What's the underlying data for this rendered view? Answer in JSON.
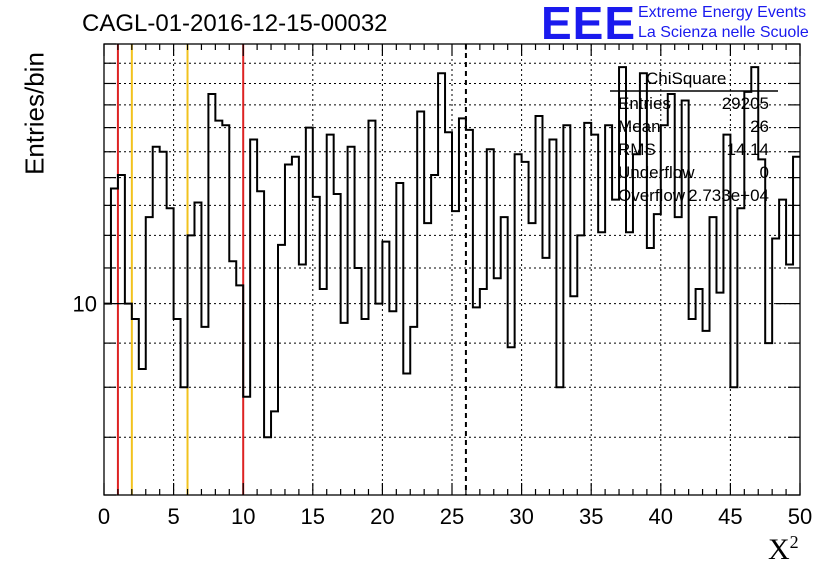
{
  "chart_data": {
    "type": "histogram",
    "title": "CAGL-01-2016-12-15-00032",
    "xlabel": "X",
    "xlabel_superscript": "2",
    "ylabel": "Entries/bin",
    "xlim": [
      0,
      50
    ],
    "ylim": [
      6,
      20
    ],
    "y_scale": "log",
    "x_ticks": [
      "0",
      "5",
      "10",
      "15",
      "20",
      "25",
      "30",
      "35",
      "40",
      "45",
      "50"
    ],
    "y_ticks": [
      "10"
    ],
    "bin_width": 0.5,
    "bin_values": [
      10,
      13.6,
      14.1,
      10,
      9.6,
      8.4,
      12.6,
      15.2,
      15,
      12.9,
      9.6,
      8,
      12,
      13.1,
      9.4,
      17.5,
      16.3,
      16.1,
      11.2,
      10.5,
      7.8,
      15.5,
      13.5,
      7,
      7.5,
      11.7,
      14.5,
      14.8,
      11.1,
      16,
      13.3,
      10.4,
      15.7,
      13.4,
      9.5,
      15.2,
      11,
      9.6,
      16.3,
      10,
      11.8,
      9.8,
      13.8,
      8.3,
      9.4,
      16.7,
      12.4,
      14.1,
      18.5,
      15.8,
      12.8,
      16.4,
      15.9,
      9.9,
      10.4,
      15.1,
      10.7,
      12.6,
      8.9,
      14.9,
      14.6,
      12.4,
      16.5,
      11.3,
      15.5,
      8,
      16.1,
      10.2,
      12,
      16.2,
      15.7,
      12.1,
      16.1,
      13.2,
      18.8,
      12.1,
      14.9,
      18.5,
      11.6,
      12.7,
      16.1,
      17.5,
      12.6,
      17.2,
      9.6,
      10.4,
      9.3,
      12.6,
      10.3,
      15.7,
      8,
      12.9,
      17.6,
      18.8,
      14.7,
      9,
      11.9,
      13.2,
      11.1,
      14.8
    ],
    "vertical_markers": [
      {
        "x": 1,
        "color": "#dd2222",
        "style": "solid"
      },
      {
        "x": 2,
        "color": "#f2c21e",
        "style": "solid"
      },
      {
        "x": 6,
        "color": "#f2c21e",
        "style": "solid"
      },
      {
        "x": 10,
        "color": "#dd2222",
        "style": "solid"
      },
      {
        "x": 26,
        "color": "#000000",
        "style": "dashed"
      }
    ],
    "stats_box": {
      "title": "ChiSquare",
      "rows": [
        {
          "label": "Entries",
          "value": "29205"
        },
        {
          "label": "Mean",
          "value": "26"
        },
        {
          "label": "RMS",
          "value": "14.14"
        },
        {
          "label": "Underflow",
          "value": "0"
        },
        {
          "label": "Overflow",
          "value": "2.733e+04"
        }
      ]
    },
    "grid": true,
    "line_color": "#000000"
  },
  "logo": {
    "mark": "EEE",
    "line1": "Extreme Energy Events",
    "line2": "La Scienza nelle Scuole",
    "color": "#1a1aee"
  }
}
